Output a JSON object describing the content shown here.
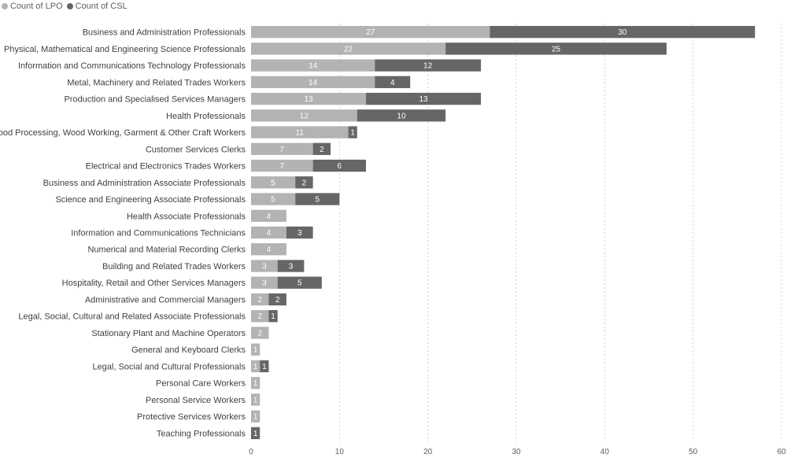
{
  "chart_data": {
    "type": "bar",
    "orientation": "horizontal",
    "stacked": true,
    "title": "",
    "xlabel": "",
    "ylabel": "",
    "xlim": [
      0,
      60
    ],
    "xticks": [
      0,
      10,
      20,
      30,
      40,
      50,
      60
    ],
    "grid": true,
    "legend_position": "top-left",
    "categories": [
      "Business and Administration Professionals",
      "Physical, Mathematical and Engineering Science Professionals",
      "Information and Communications Technology Professionals",
      "Metal, Machinery and Related Trades Workers",
      "Production and Specialised Services Managers",
      "Health Professionals",
      "Food Processing, Wood Working, Garment & Other Craft Workers",
      "Customer Services Clerks",
      "Electrical and Electronics Trades Workers",
      "Business and Administration Associate Professionals",
      "Science and Engineering Associate Professionals",
      "Health Associate Professionals",
      "Information and Communications Technicians",
      "Numerical and Material Recording Clerks",
      "Building and Related Trades Workers",
      "Hospitality, Retail and Other Services Managers",
      "Administrative and Commercial Managers",
      "Legal, Social, Cultural and Related Associate Professionals",
      "Stationary Plant and Machine Operators",
      "General and Keyboard Clerks",
      "Legal, Social and Cultural Professionals",
      "Personal Care Workers",
      "Personal Service Workers",
      "Protective Services Workers",
      "Teaching Professionals"
    ],
    "series": [
      {
        "name": "Count of LPO",
        "color": "#b3b3b3",
        "values": [
          27,
          22,
          14,
          14,
          13,
          12,
          11,
          7,
          7,
          5,
          5,
          4,
          4,
          4,
          3,
          3,
          2,
          2,
          2,
          1,
          1,
          1,
          1,
          1,
          null
        ]
      },
      {
        "name": "Count of CSL",
        "color": "#666666",
        "values": [
          30,
          25,
          12,
          4,
          13,
          10,
          1,
          2,
          6,
          2,
          5,
          null,
          3,
          null,
          3,
          5,
          2,
          1,
          null,
          null,
          1,
          null,
          null,
          null,
          1
        ]
      }
    ]
  }
}
